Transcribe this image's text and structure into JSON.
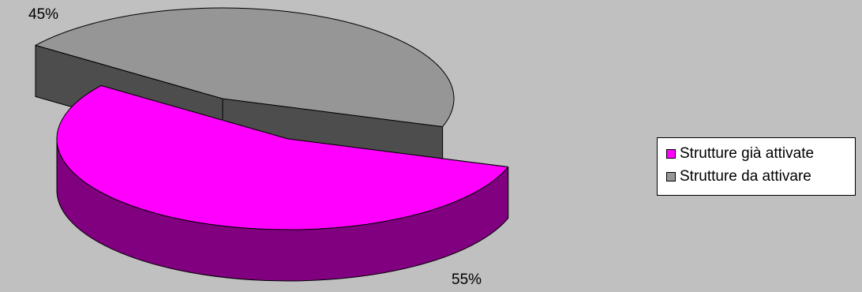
{
  "chart_data": {
    "type": "pie",
    "style": "3d-exploded",
    "slices": [
      {
        "label": "Strutture già attivate",
        "value": 55,
        "data_label": "55%",
        "color": "#ff00ff",
        "side_color": "#800080"
      },
      {
        "label": "Strutture da attivare",
        "value": 45,
        "data_label": "45%",
        "color": "#969696",
        "side_color": "#4d4d4d"
      }
    ],
    "legend_position": "right",
    "background": "#c0c0c0"
  }
}
